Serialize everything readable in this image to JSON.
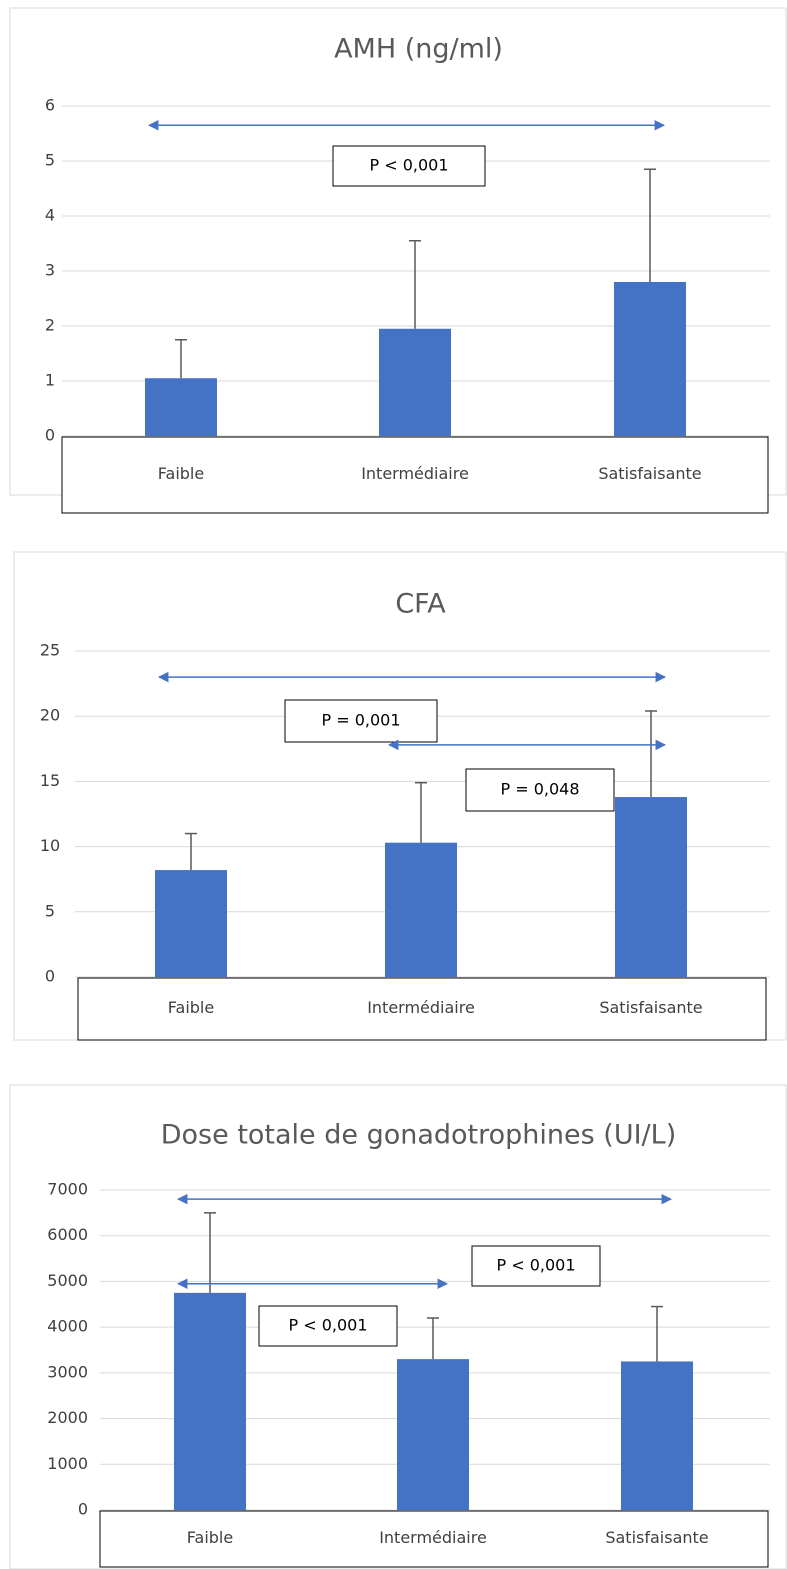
{
  "chart_data": [
    {
      "type": "bar",
      "title": "AMH (ng/ml)",
      "categories": [
        "Faible",
        "Intermédiaire",
        "Satisfaisante"
      ],
      "values": [
        1.05,
        1.95,
        2.8
      ],
      "errors": [
        0.7,
        1.6,
        2.05
      ],
      "color": "#4472c4",
      "ylim": [
        0,
        6
      ],
      "yticks": [
        0,
        1,
        2,
        3,
        4,
        5,
        6
      ],
      "grid": true,
      "annotations": [
        {
          "label": "P < 0,001",
          "from": "Faible",
          "to": "Satisfaisante",
          "y": 5.65
        }
      ]
    },
    {
      "type": "bar",
      "title": "CFA",
      "categories": [
        "Faible",
        "Intermédiaire",
        "Satisfaisante"
      ],
      "values": [
        8.2,
        10.3,
        13.8
      ],
      "errors": [
        2.8,
        4.6,
        6.6
      ],
      "color": "#4472c4",
      "ylim": [
        0,
        25
      ],
      "yticks": [
        0,
        5,
        10,
        15,
        20,
        25
      ],
      "grid": true,
      "annotations": [
        {
          "label": "P = 0,001",
          "from": "Faible",
          "to": "Satisfaisante",
          "y": 23
        },
        {
          "label": "P = 0,048",
          "from": "Intermédiaire",
          "to": "Satisfaisante",
          "y": 17.8
        }
      ]
    },
    {
      "type": "bar",
      "title": "Dose totale de gonadotrophines (UI/L)",
      "categories": [
        "Faible",
        "Intermédiaire",
        "Satisfaisante"
      ],
      "values": [
        4750,
        3300,
        3250
      ],
      "errors": [
        1750,
        900,
        1200
      ],
      "color": "#4472c4",
      "ylim": [
        0,
        7000
      ],
      "yticks": [
        0,
        1000,
        2000,
        3000,
        4000,
        5000,
        6000,
        7000
      ],
      "grid": true,
      "annotations": [
        {
          "label": "P < 0,001",
          "from": "Faible",
          "to": "Satisfaisante",
          "y": 6800
        },
        {
          "label": "P < 0,001",
          "from": "Faible",
          "to": "Intermédiaire",
          "y": 4950
        }
      ]
    }
  ]
}
